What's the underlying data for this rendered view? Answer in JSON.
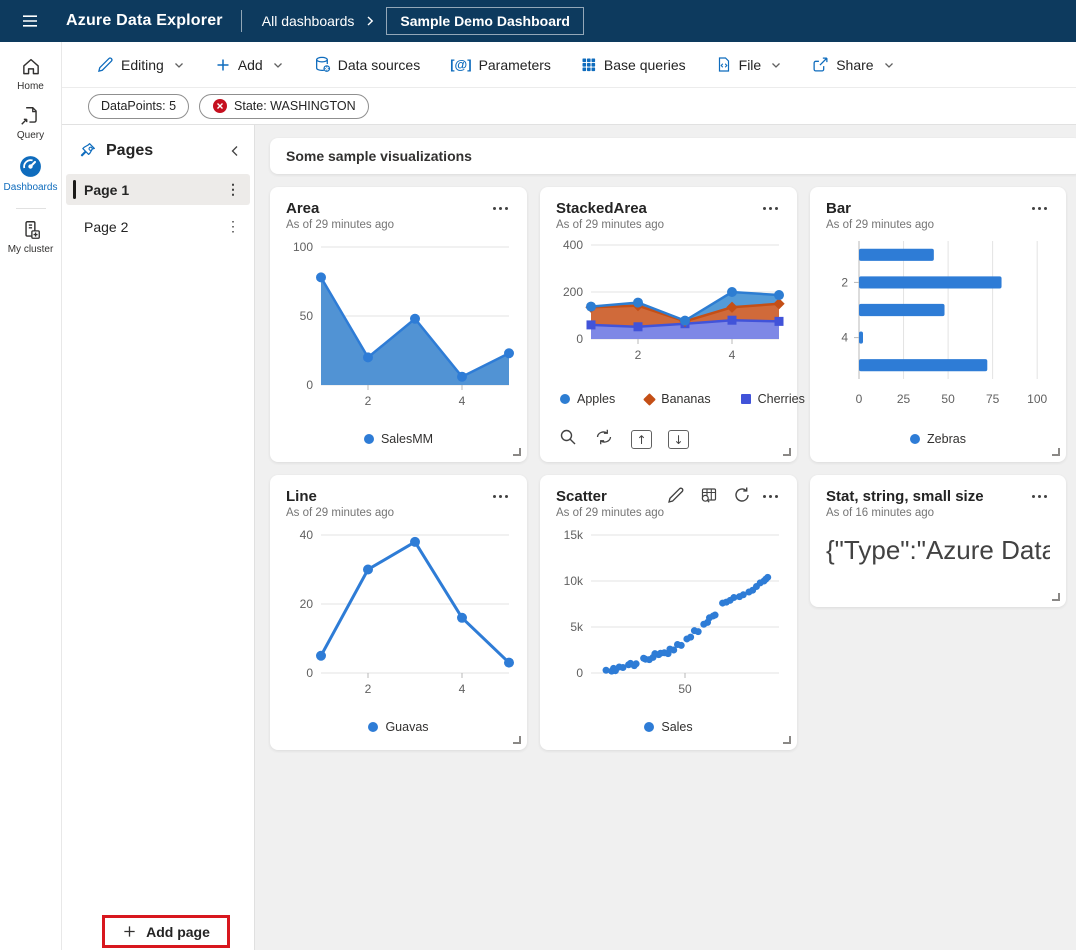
{
  "topbar": {
    "app_title": "Azure Data Explorer",
    "breadcrumb_root": "All dashboards",
    "dashboard_name": "Sample Demo Dashboard"
  },
  "toolbar": {
    "editing": "Editing",
    "add": "Add",
    "data_sources": "Data sources",
    "parameters": "Parameters",
    "parameters_icon": "[@]",
    "base_queries": "Base queries",
    "file": "File",
    "share": "Share"
  },
  "filters": [
    {
      "label": "DataPoints: 5",
      "dismissible": false
    },
    {
      "label": "State: WASHINGTON",
      "dismissible": true
    }
  ],
  "nav_rail": {
    "items": [
      {
        "label": "Home"
      },
      {
        "label": "Query"
      },
      {
        "label": "Dashboards",
        "active": true
      },
      {
        "label": "My cluster"
      }
    ]
  },
  "pages_panel": {
    "title": "Pages",
    "items": [
      {
        "label": "Page 1",
        "selected": true
      },
      {
        "label": "Page 2",
        "selected": false
      }
    ],
    "add_page_label": "Add page"
  },
  "text_tile": {
    "text": "Some sample visualizations"
  },
  "colors": {
    "topbar_bg": "#0d3a5e",
    "accent_blue": "#0f6cbd",
    "chart_blue": "#2e7cd6",
    "annotation_red": "#d8171e",
    "pill_error_red": "#c50f1f"
  },
  "tiles": [
    {
      "title": "Area",
      "subtitle": "As of 29 minutes ago",
      "chart": {
        "type": "area",
        "x": [
          1,
          2,
          3,
          4,
          5
        ],
        "xlim": [
          1,
          5
        ],
        "ylim": [
          0,
          100
        ],
        "yticks": [
          {
            "v": 0,
            "label": "0"
          },
          {
            "v": 50,
            "label": "50"
          },
          {
            "v": 100,
            "label": "100"
          }
        ],
        "xticks": [
          2,
          4
        ],
        "series": [
          {
            "name": "SalesMM",
            "color": "#2e7cd6",
            "fill": "#5193d4",
            "marker": "circle",
            "values": [
              78,
              20,
              48,
              6,
              23
            ]
          }
        ],
        "legend": [
          {
            "label": "SalesMM",
            "color": "#2e7cd6",
            "shape": "circle"
          }
        ]
      }
    },
    {
      "title": "StackedArea",
      "subtitle": "As of 29 minutes ago",
      "chart": {
        "type": "stackedarea",
        "x": [
          1,
          2,
          3,
          4,
          5
        ],
        "xlim": [
          1,
          5
        ],
        "ylim": [
          0,
          400
        ],
        "yticks": [
          {
            "v": 0,
            "label": "0"
          },
          {
            "v": 200,
            "label": "200"
          },
          {
            "v": 400,
            "label": "400"
          }
        ],
        "xticks": [
          2,
          4
        ],
        "series": [
          {
            "name": "Apples",
            "color": "#2d7dd2",
            "fill": "#549bd7",
            "marker": "circle",
            "values": [
              3,
              13,
              3,
              65,
              37
            ]
          },
          {
            "name": "Bananas",
            "color": "#c44f16",
            "fill": "#d06a3a",
            "marker": "diamond",
            "values": [
              75,
              90,
              10,
              55,
              75
            ]
          },
          {
            "name": "Cherries",
            "color": "#4153d9",
            "fill": "#7e88e6",
            "marker": "square",
            "values": [
              60,
              52,
              65,
              80,
              75
            ]
          }
        ],
        "legend": [
          {
            "label": "Apples",
            "color": "#2d7dd2",
            "shape": "circle"
          },
          {
            "label": "Bananas",
            "color": "#c44f16",
            "shape": "diamond"
          },
          {
            "label": "Cherries",
            "color": "#4153d9",
            "shape": "square"
          }
        ]
      }
    },
    {
      "title": "Bar",
      "subtitle": "As of 29 minutes ago",
      "chart": {
        "type": "bar",
        "categories": [
          1,
          2,
          3,
          4,
          5
        ],
        "values": [
          42,
          80,
          48,
          2,
          72
        ],
        "color": "#2e7cd6",
        "xlim": [
          0,
          110
        ],
        "xticks": [
          0,
          25,
          50,
          75,
          100
        ],
        "ytick_labels": [
          {
            "v": 2,
            "label": "2"
          },
          {
            "v": 4,
            "label": "4"
          }
        ],
        "legend": [
          {
            "label": "Zebras",
            "color": "#2e7cd6",
            "shape": "circle"
          }
        ]
      }
    },
    {
      "title": "Line",
      "subtitle": "As of 29 minutes ago",
      "chart": {
        "type": "line",
        "x": [
          1,
          2,
          3,
          4,
          5
        ],
        "xlim": [
          1,
          5
        ],
        "ylim": [
          0,
          40
        ],
        "yticks": [
          {
            "v": 0,
            "label": "0"
          },
          {
            "v": 20,
            "label": "20"
          },
          {
            "v": 40,
            "label": "40"
          }
        ],
        "xticks": [
          2,
          4
        ],
        "series": [
          {
            "name": "Guavas",
            "color": "#2e7cd6",
            "marker": "circle",
            "values": [
              5,
              30,
              38,
              16,
              3
            ]
          }
        ],
        "legend": [
          {
            "label": "Guavas",
            "color": "#2e7cd6",
            "shape": "circle"
          }
        ]
      }
    },
    {
      "title": "Scatter",
      "subtitle": "As of 29 minutes ago",
      "chart": {
        "type": "scatter",
        "color": "#2e7cd6",
        "xlim": [
          0,
          100
        ],
        "ylim": [
          0,
          15000
        ],
        "yticks": [
          {
            "v": 0,
            "label": "0"
          },
          {
            "v": 5000,
            "label": "5k"
          },
          {
            "v": 10000,
            "label": "10k"
          },
          {
            "v": 15000,
            "label": "15k"
          }
        ],
        "xticks": [
          50
        ],
        "points": [
          [
            8,
            300
          ],
          [
            11,
            200
          ],
          [
            12,
            500
          ],
          [
            13,
            250
          ],
          [
            15,
            650
          ],
          [
            17,
            600
          ],
          [
            20,
            900
          ],
          [
            21,
            1050
          ],
          [
            23,
            800
          ],
          [
            24,
            1000
          ],
          [
            28,
            1600
          ],
          [
            29,
            1500
          ],
          [
            31,
            1450
          ],
          [
            33,
            1700
          ],
          [
            34,
            2100
          ],
          [
            36,
            2000
          ],
          [
            37,
            2150
          ],
          [
            39,
            2200
          ],
          [
            41,
            2100
          ],
          [
            42,
            2600
          ],
          [
            44,
            2500
          ],
          [
            46,
            3100
          ],
          [
            48,
            3000
          ],
          [
            51,
            3700
          ],
          [
            53,
            3900
          ],
          [
            55,
            4600
          ],
          [
            57,
            4500
          ],
          [
            60,
            5300
          ],
          [
            62,
            5500
          ],
          [
            63,
            6000
          ],
          [
            65,
            6200
          ],
          [
            66,
            6300
          ],
          [
            70,
            7600
          ],
          [
            72,
            7700
          ],
          [
            74,
            7900
          ],
          [
            76,
            8200
          ],
          [
            79,
            8300
          ],
          [
            81,
            8500
          ],
          [
            84,
            8800
          ],
          [
            86,
            9000
          ],
          [
            88,
            9400
          ],
          [
            90,
            9800
          ],
          [
            92,
            10000
          ],
          [
            93,
            10200
          ],
          [
            94,
            10400
          ]
        ],
        "legend": [
          {
            "label": "Sales",
            "color": "#2e7cd6",
            "shape": "circle"
          }
        ]
      }
    },
    {
      "title": "Stat, string, small size",
      "subtitle": "As of 16 minutes ago",
      "content": "{\"Type\":\"Azure Data E..."
    }
  ]
}
